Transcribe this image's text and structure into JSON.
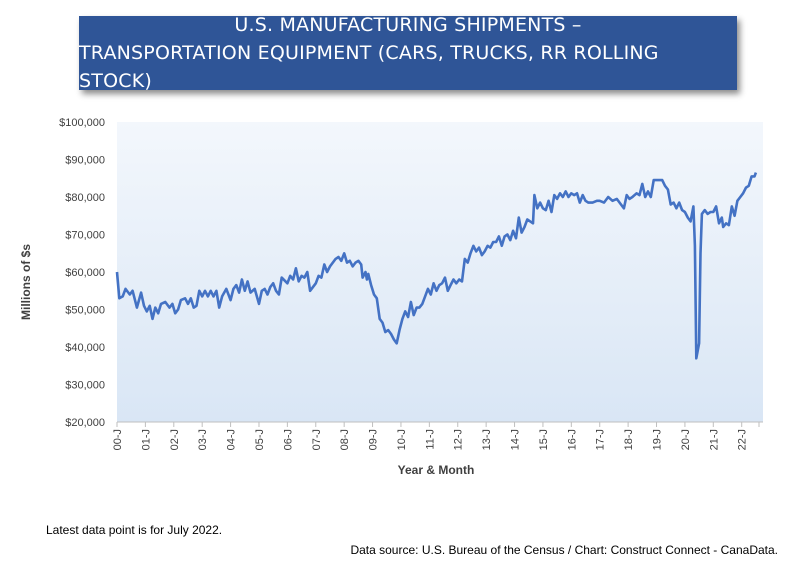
{
  "title": {
    "line1": "U.S. MANUFACTURING SHIPMENTS –",
    "line2": "TRANSPORTATION EQUIPMENT (CARS, TRUCKS, RR ROLLING STOCK)"
  },
  "note": "Latest data point is for July 2022.",
  "source": "Data source: U.S. Bureau of the Census / Chart: Construct Connect - CanaData.",
  "colors": {
    "title_bg": "#2f5597",
    "line": "#4472c4",
    "plot_bg_top": "#f3f7fc",
    "plot_bg_bottom": "#d9e6f5"
  },
  "chart_data": {
    "type": "line",
    "xlabel": "Year & Month",
    "ylabel": "Millions of $s",
    "ylim": [
      20000,
      100000
    ],
    "y_ticks": [
      "$100,000",
      "$90,000",
      "$80,000",
      "$70,000",
      "$60,000",
      "$50,000",
      "$40,000",
      "$30,000",
      "$20,000"
    ],
    "y_tick_values": [
      100000,
      90000,
      80000,
      70000,
      60000,
      50000,
      40000,
      30000,
      20000
    ],
    "x_ticks": [
      "00-J",
      "01-J",
      "02-J",
      "03-J",
      "04-J",
      "05-J",
      "06-J",
      "07-J",
      "08-J",
      "09-J",
      "10-J",
      "11-J",
      "12-J",
      "13-J",
      "14-J",
      "15-J",
      "16-J",
      "17-J",
      "18-J",
      "19-J",
      "20-J",
      "21-J",
      "22-J"
    ],
    "x_tick_dates": [
      2000,
      2001,
      2002,
      2003,
      2004,
      2005,
      2006,
      2007,
      2008,
      2009,
      2010,
      2011,
      2012,
      2013,
      2014,
      2015,
      2016,
      2017,
      2018,
      2019,
      2020,
      2021,
      2022
    ],
    "grid": false,
    "legend": "none",
    "series": [
      {
        "points": [
          [
            2000.0,
            60000
          ],
          [
            2000.08,
            53000
          ],
          [
            2000.2,
            53500
          ],
          [
            2000.3,
            55500
          ],
          [
            2000.45,
            54000
          ],
          [
            2000.55,
            55000
          ],
          [
            2000.7,
            50500
          ],
          [
            2000.85,
            54500
          ],
          [
            2000.95,
            51000
          ],
          [
            2001.05,
            49500
          ],
          [
            2001.15,
            51000
          ],
          [
            2001.25,
            47500
          ],
          [
            2001.35,
            50500
          ],
          [
            2001.45,
            49000
          ],
          [
            2001.55,
            51500
          ],
          [
            2001.7,
            52000
          ],
          [
            2001.85,
            50500
          ],
          [
            2001.95,
            51500
          ],
          [
            2002.05,
            49000
          ],
          [
            2002.15,
            50000
          ],
          [
            2002.25,
            52500
          ],
          [
            2002.4,
            53000
          ],
          [
            2002.5,
            51500
          ],
          [
            2002.6,
            53000
          ],
          [
            2002.7,
            50500
          ],
          [
            2002.8,
            51000
          ],
          [
            2002.9,
            55000
          ],
          [
            2003.0,
            53500
          ],
          [
            2003.1,
            55000
          ],
          [
            2003.2,
            53500
          ],
          [
            2003.3,
            55000
          ],
          [
            2003.4,
            53500
          ],
          [
            2003.5,
            55000
          ],
          [
            2003.6,
            50500
          ],
          [
            2003.7,
            53500
          ],
          [
            2003.85,
            55500
          ],
          [
            2004.0,
            52500
          ],
          [
            2004.1,
            55500
          ],
          [
            2004.2,
            56500
          ],
          [
            2004.3,
            54500
          ],
          [
            2004.4,
            58000
          ],
          [
            2004.5,
            55000
          ],
          [
            2004.6,
            57500
          ],
          [
            2004.7,
            54500
          ],
          [
            2004.85,
            55500
          ],
          [
            2005.0,
            51500
          ],
          [
            2005.1,
            55000
          ],
          [
            2005.2,
            55500
          ],
          [
            2005.3,
            54000
          ],
          [
            2005.4,
            56000
          ],
          [
            2005.5,
            57000
          ],
          [
            2005.6,
            55000
          ],
          [
            2005.7,
            54000
          ],
          [
            2005.8,
            58500
          ],
          [
            2006.0,
            57000
          ],
          [
            2006.1,
            59000
          ],
          [
            2006.2,
            58000
          ],
          [
            2006.3,
            61000
          ],
          [
            2006.4,
            57500
          ],
          [
            2006.5,
            59000
          ],
          [
            2006.6,
            58500
          ],
          [
            2006.7,
            60000
          ],
          [
            2006.8,
            55000
          ],
          [
            2007.0,
            57000
          ],
          [
            2007.1,
            59000
          ],
          [
            2007.2,
            58500
          ],
          [
            2007.3,
            62000
          ],
          [
            2007.4,
            60000
          ],
          [
            2007.5,
            61500
          ],
          [
            2007.6,
            62500
          ],
          [
            2007.7,
            63500
          ],
          [
            2007.8,
            64000
          ],
          [
            2007.9,
            63000
          ],
          [
            2008.0,
            65000
          ],
          [
            2008.1,
            62500
          ],
          [
            2008.2,
            63000
          ],
          [
            2008.3,
            61500
          ],
          [
            2008.4,
            62500
          ],
          [
            2008.5,
            63000
          ],
          [
            2008.6,
            62000
          ],
          [
            2008.65,
            58500
          ],
          [
            2008.75,
            60000
          ],
          [
            2008.8,
            58000
          ],
          [
            2008.85,
            59500
          ],
          [
            2008.95,
            56500
          ],
          [
            2009.05,
            54000
          ],
          [
            2009.15,
            53000
          ],
          [
            2009.25,
            47500
          ],
          [
            2009.35,
            46500
          ],
          [
            2009.45,
            44000
          ],
          [
            2009.55,
            44500
          ],
          [
            2009.65,
            43500
          ],
          [
            2009.75,
            42000
          ],
          [
            2009.85,
            41000
          ],
          [
            2009.95,
            44500
          ],
          [
            2010.05,
            47500
          ],
          [
            2010.15,
            49500
          ],
          [
            2010.25,
            48000
          ],
          [
            2010.35,
            52000
          ],
          [
            2010.45,
            48500
          ],
          [
            2010.55,
            50500
          ],
          [
            2010.65,
            50500
          ],
          [
            2010.75,
            51500
          ],
          [
            2010.85,
            53500
          ],
          [
            2010.95,
            55500
          ],
          [
            2011.05,
            54000
          ],
          [
            2011.15,
            57000
          ],
          [
            2011.25,
            55000
          ],
          [
            2011.35,
            56500
          ],
          [
            2011.45,
            57000
          ],
          [
            2011.55,
            58500
          ],
          [
            2011.65,
            55000
          ],
          [
            2011.75,
            56500
          ],
          [
            2011.85,
            58000
          ],
          [
            2011.95,
            57000
          ],
          [
            2012.05,
            58000
          ],
          [
            2012.15,
            57500
          ],
          [
            2012.25,
            63500
          ],
          [
            2012.35,
            62500
          ],
          [
            2012.45,
            65000
          ],
          [
            2012.55,
            67000
          ],
          [
            2012.65,
            65500
          ],
          [
            2012.75,
            66500
          ],
          [
            2012.85,
            64500
          ],
          [
            2012.95,
            65500
          ],
          [
            2013.05,
            67000
          ],
          [
            2013.15,
            66500
          ],
          [
            2013.25,
            68000
          ],
          [
            2013.35,
            68000
          ],
          [
            2013.45,
            69500
          ],
          [
            2013.55,
            67000
          ],
          [
            2013.65,
            69500
          ],
          [
            2013.75,
            70000
          ],
          [
            2013.85,
            68500
          ],
          [
            2013.95,
            71000
          ],
          [
            2014.05,
            69000
          ],
          [
            2014.15,
            74500
          ],
          [
            2014.25,
            70500
          ],
          [
            2014.35,
            72000
          ],
          [
            2014.45,
            74000
          ],
          [
            2014.55,
            73500
          ],
          [
            2014.65,
            73000
          ],
          [
            2014.7,
            80500
          ],
          [
            2014.8,
            77000
          ],
          [
            2014.9,
            78500
          ],
          [
            2015.0,
            77000
          ],
          [
            2015.1,
            76500
          ],
          [
            2015.2,
            79000
          ],
          [
            2015.3,
            76000
          ],
          [
            2015.4,
            80500
          ],
          [
            2015.5,
            79500
          ],
          [
            2015.6,
            81000
          ],
          [
            2015.7,
            80000
          ],
          [
            2015.8,
            81500
          ],
          [
            2015.9,
            80000
          ],
          [
            2016.0,
            81000
          ],
          [
            2016.1,
            80500
          ],
          [
            2016.2,
            81000
          ],
          [
            2016.3,
            78500
          ],
          [
            2016.4,
            80500
          ],
          [
            2016.5,
            79000
          ],
          [
            2016.6,
            78500
          ],
          [
            2016.75,
            78500
          ],
          [
            2016.9,
            79000
          ],
          [
            2017.0,
            79000
          ],
          [
            2017.15,
            78500
          ],
          [
            2017.3,
            80000
          ],
          [
            2017.45,
            79000
          ],
          [
            2017.6,
            79500
          ],
          [
            2017.75,
            78000
          ],
          [
            2017.85,
            77000
          ],
          [
            2017.95,
            80500
          ],
          [
            2018.05,
            79500
          ],
          [
            2018.15,
            80000
          ],
          [
            2018.3,
            81000
          ],
          [
            2018.4,
            80500
          ],
          [
            2018.5,
            83500
          ],
          [
            2018.6,
            80000
          ],
          [
            2018.7,
            81500
          ],
          [
            2018.8,
            80000
          ],
          [
            2018.9,
            84500
          ],
          [
            2019.05,
            84500
          ],
          [
            2019.2,
            84500
          ],
          [
            2019.3,
            83000
          ],
          [
            2019.4,
            82000
          ],
          [
            2019.5,
            78000
          ],
          [
            2019.6,
            78500
          ],
          [
            2019.7,
            77000
          ],
          [
            2019.8,
            78500
          ],
          [
            2019.9,
            76500
          ],
          [
            2020.0,
            76000
          ],
          [
            2020.1,
            74500
          ],
          [
            2020.2,
            73500
          ],
          [
            2020.3,
            77500
          ],
          [
            2020.35,
            67000
          ],
          [
            2020.4,
            37000
          ],
          [
            2020.5,
            41000
          ],
          [
            2020.55,
            65000
          ],
          [
            2020.6,
            75500
          ],
          [
            2020.7,
            76500
          ],
          [
            2020.8,
            75500
          ],
          [
            2020.9,
            76000
          ],
          [
            2021.0,
            76000
          ],
          [
            2021.1,
            77500
          ],
          [
            2021.2,
            73000
          ],
          [
            2021.3,
            74500
          ],
          [
            2021.35,
            72000
          ],
          [
            2021.45,
            73000
          ],
          [
            2021.55,
            72500
          ],
          [
            2021.65,
            77500
          ],
          [
            2021.75,
            75000
          ],
          [
            2021.85,
            79000
          ],
          [
            2021.95,
            80000
          ],
          [
            2022.05,
            81000
          ],
          [
            2022.15,
            82500
          ],
          [
            2022.25,
            83000
          ],
          [
            2022.35,
            85500
          ],
          [
            2022.45,
            85500
          ],
          [
            2022.5,
            86500
          ]
        ]
      }
    ]
  }
}
